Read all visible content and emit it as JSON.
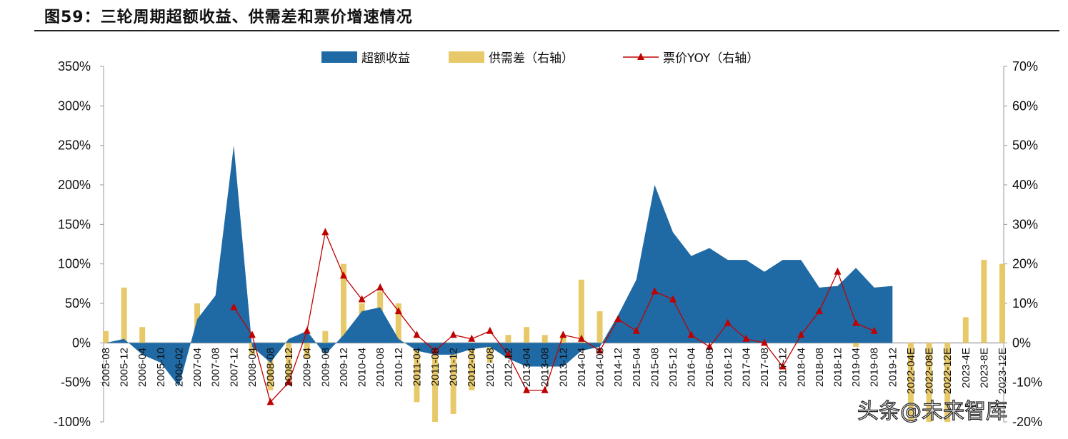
{
  "title": "图59：三轮周期超额收益、供需差和票价增速情况",
  "watermark": "头条@未来智库",
  "chart_data": {
    "type": "bar",
    "title": "三轮周期超额收益、供需差和票价增速情况",
    "categories": [
      "2005-08",
      "2005-12",
      "2006-04",
      "2005-10",
      "2006-02",
      "2007-04",
      "2007-08",
      "2007-12",
      "2008-04",
      "2008-08",
      "2008-12",
      "2009-04",
      "2009-08",
      "2009-12",
      "2010-04",
      "2010-08",
      "2010-12",
      "2011-04",
      "2011-08",
      "2011-12",
      "2012-04",
      "2012-08",
      "2012-12",
      "2013-04",
      "2013-08",
      "2013-12",
      "2014-04",
      "2014-08",
      "2014-12",
      "2015-04",
      "2015-08",
      "2015-12",
      "2016-04",
      "2016-08",
      "2016-12",
      "2017-04",
      "2017-08",
      "2017-12",
      "2018-04",
      "2018-08",
      "2018-12",
      "2019-04",
      "2019-08",
      "2019-12",
      "2022-04E",
      "2022-08E",
      "2022-12E",
      "2023-4E",
      "2023-8E",
      "2023-12E"
    ],
    "left_axis": {
      "ylim": [
        -100,
        350
      ],
      "ticks": [
        "-100%",
        "-50%",
        "0%",
        "50%",
        "100%",
        "150%",
        "200%",
        "250%",
        "300%",
        "350%"
      ]
    },
    "right_axis": {
      "ylim": [
        -20,
        70
      ],
      "ticks": [
        "-20%",
        "-10%",
        "0%",
        "10%",
        "20%",
        "30%",
        "40%",
        "50%",
        "60%",
        "70%"
      ]
    },
    "legend_position": "top",
    "series": [
      {
        "name": "超额收益",
        "type": "area",
        "axis": "left",
        "color": "#1f6aa5",
        "values": [
          0,
          5,
          -15,
          -25,
          -55,
          30,
          60,
          250,
          -5,
          -25,
          5,
          15,
          -15,
          10,
          40,
          45,
          5,
          -10,
          -15,
          -15,
          -8,
          -5,
          -20,
          -30,
          -30,
          -30,
          -10,
          -5,
          35,
          80,
          200,
          140,
          110,
          120,
          105,
          105,
          90,
          105,
          105,
          70,
          72,
          95,
          70,
          72,
          null,
          null,
          null,
          null,
          null,
          null
        ]
      },
      {
        "name": "供需差（右轴）",
        "type": "bar",
        "axis": "right",
        "color": "#e8c96a",
        "values": [
          3,
          14,
          4,
          -2,
          -8,
          10,
          6,
          7,
          -3,
          -12,
          -10,
          -4,
          3,
          20,
          10,
          13,
          10,
          -15,
          -20,
          -18,
          -12,
          -5,
          2,
          4,
          2,
          2,
          16,
          8,
          6,
          10,
          7,
          6,
          2,
          2,
          6,
          3,
          2,
          3,
          5,
          3,
          6,
          -1,
          5,
          0,
          -20,
          -20,
          -20,
          6.5,
          21,
          20
        ]
      },
      {
        "name": "票价YOY（右轴）",
        "type": "line",
        "axis": "right",
        "color": "#c00000",
        "marker": "triangle",
        "values": [
          null,
          null,
          null,
          null,
          null,
          null,
          null,
          9,
          2,
          -15,
          -10,
          3,
          28,
          17,
          11,
          14,
          8,
          2,
          -2,
          2,
          1,
          3,
          -3,
          -12,
          -12,
          2,
          1,
          -2,
          6,
          3,
          13,
          11,
          2,
          -1,
          5,
          1,
          0,
          -6,
          2,
          8,
          18,
          5,
          3,
          null,
          null,
          null,
          null,
          null,
          null,
          null
        ]
      }
    ]
  }
}
